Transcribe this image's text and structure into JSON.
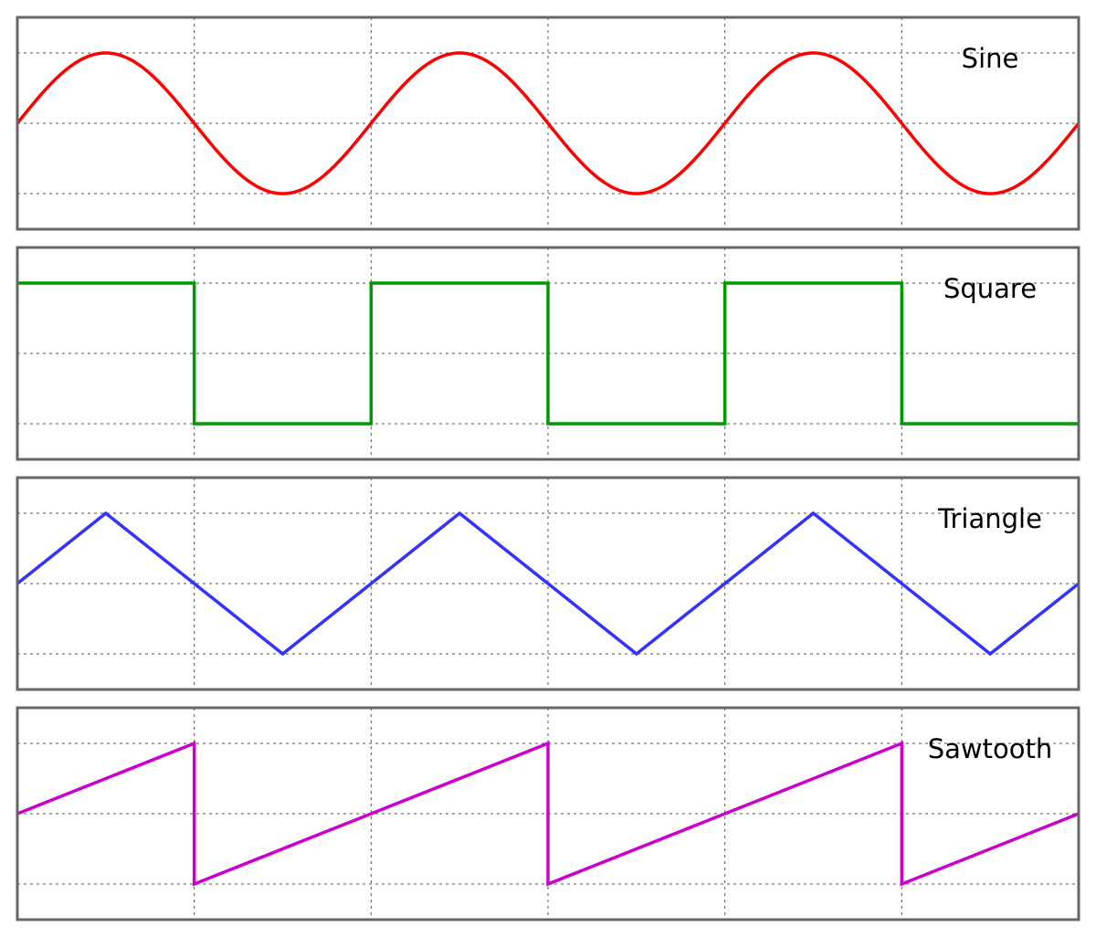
{
  "chart_data": [
    {
      "type": "line",
      "waveform": "sine",
      "title": "Sine",
      "color": "#ff0000",
      "xlim": [
        0,
        3
      ],
      "ylim": [
        -1,
        1
      ],
      "periods": 3,
      "amplitude": 1,
      "grid": true
    },
    {
      "type": "line",
      "waveform": "square",
      "title": "Square",
      "color": "#009900",
      "xlim": [
        0,
        3
      ],
      "ylim": [
        -1,
        1
      ],
      "periods": 3,
      "amplitude": 1,
      "grid": true
    },
    {
      "type": "line",
      "waveform": "triangle",
      "title": "Triangle",
      "color": "#3333ff",
      "xlim": [
        0,
        3
      ],
      "ylim": [
        -1,
        1
      ],
      "periods": 3,
      "amplitude": 1,
      "grid": true
    },
    {
      "type": "line",
      "waveform": "sawtooth",
      "title": "Sawtooth",
      "color": "#cc00cc",
      "xlim": [
        0,
        3
      ],
      "ylim": [
        -1,
        1
      ],
      "periods": 3,
      "amplitude": 1,
      "grid": true
    }
  ]
}
